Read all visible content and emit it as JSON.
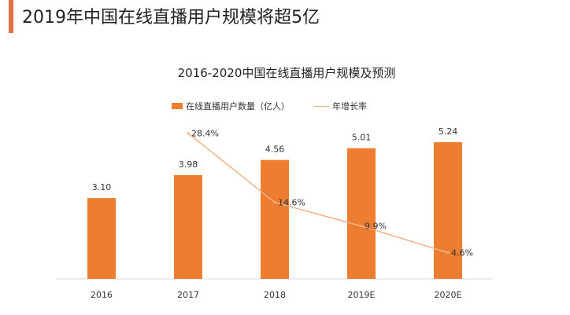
{
  "header": {
    "title": "2019年中国在线直播用户规模将超5亿"
  },
  "chart_data": {
    "type": "bar+line",
    "title": "2016-2020中国在线直播用户规模及预测",
    "categories": [
      "2016",
      "2017",
      "2018",
      "2019E",
      "2020E"
    ],
    "series": [
      {
        "name": "在线直播用户数量（亿人）",
        "type": "bar",
        "values": [
          3.1,
          3.98,
          4.56,
          5.01,
          5.24
        ],
        "labels": [
          "3.10",
          "3.98",
          "4.56",
          "5.01",
          "5.24"
        ],
        "color": "#ED7D31"
      },
      {
        "name": "年增长率",
        "type": "line",
        "values": [
          null,
          28.4,
          14.6,
          9.9,
          4.6
        ],
        "labels": [
          "",
          "28.4%",
          "14.6%",
          "9.9%",
          "4.6%"
        ],
        "color": "#F4B183"
      }
    ],
    "legend": "top",
    "grid": false
  }
}
